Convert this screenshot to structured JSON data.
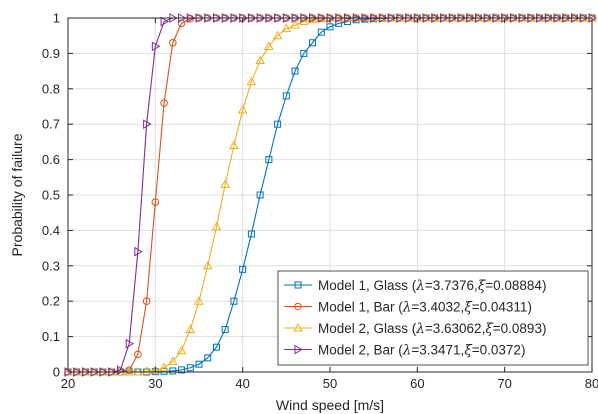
{
  "chart_data": {
    "type": "line",
    "title": "",
    "xlabel": "Wind speed [m/s]",
    "ylabel": "Probability of failure",
    "xlim": [
      20,
      80
    ],
    "ylim": [
      0,
      1
    ],
    "xticks": [
      20,
      30,
      40,
      50,
      60,
      70,
      80
    ],
    "yticks": [
      0,
      0.1,
      0.2,
      0.3,
      0.4,
      0.5,
      0.6,
      0.7,
      0.8,
      0.9,
      1
    ],
    "grid": true,
    "legend_position": "bottom-right",
    "series": [
      {
        "name_prefix": "Model 1, Glass (",
        "lambda": "3.7376",
        "xi": "0.08884",
        "color": "#0072BD",
        "marker": "square",
        "x": [
          20,
          21,
          22,
          23,
          24,
          25,
          26,
          27,
          28,
          29,
          30,
          31,
          32,
          33,
          34,
          35,
          36,
          37,
          38,
          39,
          40,
          41,
          42,
          43,
          44,
          45,
          46,
          47,
          48,
          49,
          50,
          51,
          52,
          53,
          54,
          55,
          56,
          57,
          58,
          59,
          60,
          61,
          62,
          63,
          64,
          65,
          66,
          67,
          68,
          69,
          70,
          71,
          72,
          73,
          74,
          75,
          76,
          77,
          78,
          79,
          80
        ],
        "values": [
          0,
          0,
          0,
          0,
          0,
          0,
          0,
          0,
          0,
          0,
          0.001,
          0.002,
          0.003,
          0.006,
          0.012,
          0.022,
          0.04,
          0.07,
          0.12,
          0.2,
          0.29,
          0.39,
          0.5,
          0.6,
          0.7,
          0.78,
          0.85,
          0.9,
          0.93,
          0.96,
          0.975,
          0.985,
          0.99,
          0.995,
          0.997,
          0.998,
          0.999,
          1,
          1,
          1,
          1,
          1,
          1,
          1,
          1,
          1,
          1,
          1,
          1,
          1,
          1,
          1,
          1,
          1,
          1,
          1,
          1,
          1,
          1,
          1,
          1
        ]
      },
      {
        "name_prefix": "Model 1, Bar (",
        "lambda": "3.4032",
        "xi": "0.04311",
        "color": "#D95319",
        "marker": "circle",
        "x": [
          20,
          21,
          22,
          23,
          24,
          25,
          26,
          27,
          28,
          29,
          30,
          31,
          32,
          33,
          34,
          35,
          36,
          37,
          38,
          39,
          40,
          41,
          42,
          43,
          44,
          45,
          46,
          47,
          48,
          49,
          50,
          51,
          52,
          53,
          54,
          55,
          56,
          57,
          58,
          59,
          60,
          61,
          62,
          63,
          64,
          65,
          66,
          67,
          68,
          69,
          70,
          71,
          72,
          73,
          74,
          75,
          76,
          77,
          78,
          79,
          80
        ],
        "values": [
          0,
          0,
          0,
          0,
          0,
          0,
          0,
          0.005,
          0.05,
          0.2,
          0.48,
          0.76,
          0.93,
          0.985,
          0.998,
          1,
          1,
          1,
          1,
          1,
          1,
          1,
          1,
          1,
          1,
          1,
          1,
          1,
          1,
          1,
          1,
          1,
          1,
          1,
          1,
          1,
          1,
          1,
          1,
          1,
          1,
          1,
          1,
          1,
          1,
          1,
          1,
          1,
          1,
          1,
          1,
          1,
          1,
          1,
          1,
          1,
          1,
          1,
          1,
          1,
          1
        ]
      },
      {
        "name_prefix": "Model 2, Glass (",
        "lambda": "3.63062",
        "xi": "0.0893",
        "color": "#EDB120",
        "marker": "triangle-up",
        "x": [
          20,
          21,
          22,
          23,
          24,
          25,
          26,
          27,
          28,
          29,
          30,
          31,
          32,
          33,
          34,
          35,
          36,
          37,
          38,
          39,
          40,
          41,
          42,
          43,
          44,
          45,
          46,
          47,
          48,
          49,
          50,
          51,
          52,
          53,
          54,
          55,
          56,
          57,
          58,
          59,
          60,
          61,
          62,
          63,
          64,
          65,
          66,
          67,
          68,
          69,
          70,
          71,
          72,
          73,
          74,
          75,
          76,
          77,
          78,
          79,
          80
        ],
        "values": [
          0,
          0,
          0,
          0,
          0,
          0,
          0,
          0,
          0,
          0.002,
          0.005,
          0.012,
          0.03,
          0.06,
          0.12,
          0.2,
          0.3,
          0.41,
          0.53,
          0.64,
          0.74,
          0.82,
          0.88,
          0.92,
          0.95,
          0.97,
          0.98,
          0.99,
          0.995,
          0.998,
          1,
          1,
          1,
          1,
          1,
          1,
          1,
          1,
          1,
          1,
          1,
          1,
          1,
          1,
          1,
          1,
          1,
          1,
          1,
          1,
          1,
          1,
          1,
          1,
          1,
          1,
          1,
          1,
          1,
          1,
          1
        ]
      },
      {
        "name_prefix": "Model 2, Bar (",
        "lambda": "3.3471",
        "xi": "0.0372",
        "color": "#7E2F8E",
        "marker": "triangle-right",
        "x": [
          20,
          21,
          22,
          23,
          24,
          25,
          26,
          27,
          28,
          29,
          30,
          31,
          32,
          33,
          34,
          35,
          36,
          37,
          38,
          39,
          40,
          41,
          42,
          43,
          44,
          45,
          46,
          47,
          48,
          49,
          50,
          51,
          52,
          53,
          54,
          55,
          56,
          57,
          58,
          59,
          60,
          61,
          62,
          63,
          64,
          65,
          66,
          67,
          68,
          69,
          70,
          71,
          72,
          73,
          74,
          75,
          76,
          77,
          78,
          79,
          80
        ],
        "values": [
          0,
          0,
          0,
          0,
          0,
          0,
          0.005,
          0.08,
          0.34,
          0.7,
          0.92,
          0.99,
          1,
          1,
          1,
          1,
          1,
          1,
          1,
          1,
          1,
          1,
          1,
          1,
          1,
          1,
          1,
          1,
          1,
          1,
          1,
          1,
          1,
          1,
          1,
          1,
          1,
          1,
          1,
          1,
          1,
          1,
          1,
          1,
          1,
          1,
          1,
          1,
          1,
          1,
          1,
          1,
          1,
          1,
          1,
          1,
          1,
          1,
          1,
          1,
          1
        ]
      }
    ]
  }
}
